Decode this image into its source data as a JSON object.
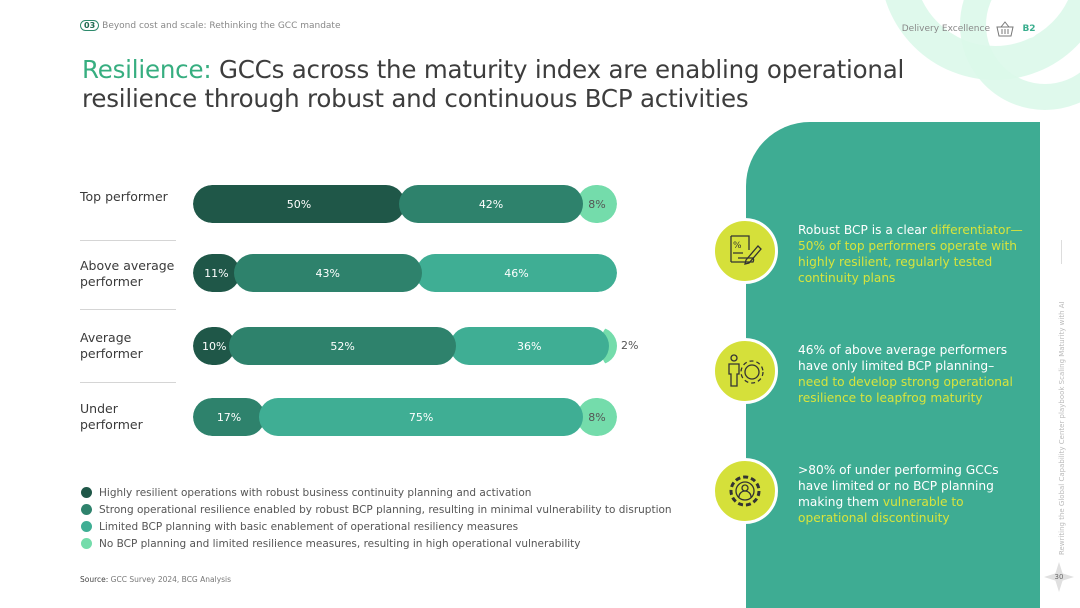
{
  "header": {
    "section_num": "03",
    "breadcrumb": "Beyond cost and scale: Rethinking the GCC mandate",
    "section_label": "Delivery Excellence",
    "badge": "B2"
  },
  "title": {
    "highlight": "Resilience:",
    "rest": " GCCs across the maturity index are enabling operational resilience through robust and continuous BCP activities"
  },
  "colors": {
    "dark": "#1f5748",
    "medium": "#2e826c",
    "light": "#3fae94",
    "lightest": "#74dcab",
    "accent": "#37ae80",
    "lime": "#d5e03a",
    "panel": "#3eac93"
  },
  "chart_data": {
    "type": "bar",
    "orientation": "horizontal",
    "stacked": true,
    "categories": [
      "Top performer",
      "Above average performer",
      "Average performer",
      "Under performer"
    ],
    "legend": [
      "Highly resilient operations with robust business continuity planning and activation",
      "Strong operational resilience enabled by robust BCP planning, resulting in minimal vulnerability to disruption",
      "Limited BCP planning with basic enablement of operational resiliency measures",
      "No BCP planning and limited resilience measures, resulting in high operational vulnerability"
    ],
    "legend_placement": "bottom",
    "rows": [
      {
        "label": "Top performer",
        "values": [
          50,
          42,
          0,
          8
        ],
        "labels": [
          "50%",
          "42%",
          "",
          "8%"
        ]
      },
      {
        "label": "Above average performer",
        "values": [
          11,
          43,
          46,
          0
        ],
        "labels": [
          "11%",
          "43%",
          "46%",
          ""
        ]
      },
      {
        "label": "Average performer",
        "values": [
          10,
          52,
          36,
          2
        ],
        "labels": [
          "10%",
          "52%",
          "36%",
          "2%"
        ]
      },
      {
        "label": "Under performer",
        "values": [
          0,
          17,
          75,
          8
        ],
        "labels": [
          "",
          "17%",
          "75%",
          "8%"
        ]
      }
    ]
  },
  "source": {
    "label": "Source:",
    "text": " GCC Survey 2024, BCG Analysis"
  },
  "callouts": [
    {
      "icon": "document-percent-pen-icon",
      "white": "Robust BCP is a clear ",
      "lime": "differentiator—50% of top performers operate with highly resilient, regularly tested continuity plans",
      "white2": ""
    },
    {
      "icon": "person-gear-icon",
      "white": "46% of above average performers have only limited BCP planning–",
      "lime": "need to develop strong operational resilience to leapfrog maturity",
      "white2": ""
    },
    {
      "icon": "gear-person-icon",
      "white": ">80% of under performing GCCs have limited or no BCP planning making them ",
      "lime": "vulnerable to operational discontinuity",
      "white2": ""
    }
  ],
  "footer": {
    "vertical_text": "Rewriting the Global Capability Center playbook Scaling Maturity with AI",
    "page": "30"
  }
}
